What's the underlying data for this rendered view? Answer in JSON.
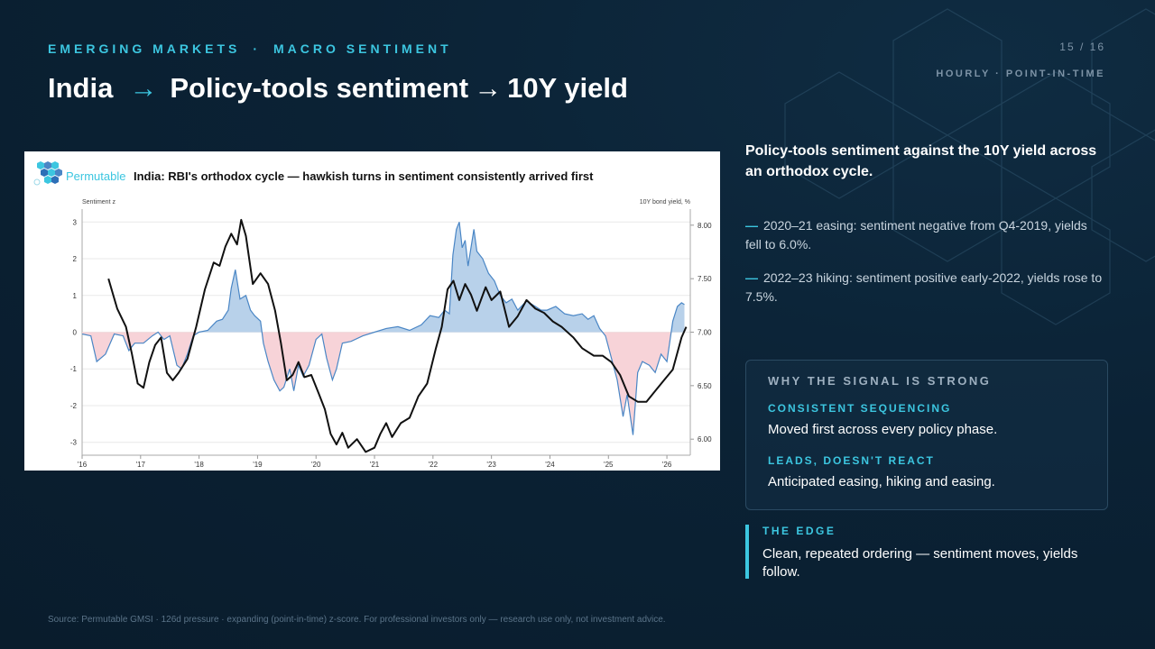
{
  "header": {
    "eyebrow_left": "EMERGING MARKETS",
    "eyebrow_sep": "·",
    "eyebrow_right": "MACRO SENTIMENT",
    "title_part1": "India",
    "title_arrow1": "→",
    "title_part2": "Policy-tools sentiment",
    "title_arrow2": "→",
    "title_part3": "10Y yield",
    "page_number": "15 / 16",
    "frequency": "HOURLY · POINT-IN-TIME"
  },
  "chart_card": {
    "brand": "Permutable",
    "brand_color": "#3cc6e0",
    "title": "India: RBI's orthodox cycle — hawkish turns in sentiment consistently arrived first",
    "left_axis_label": "Sentiment z",
    "right_axis_label": "10Y bond yield, %"
  },
  "chart_data": {
    "type": "area",
    "x_ticks": [
      "'16",
      "'17",
      "'18",
      "'19",
      "'20",
      "'21",
      "'22",
      "'23",
      "'24",
      "'25",
      "'26"
    ],
    "x_range": [
      2016.0,
      2026.4
    ],
    "left_y_ticks": [
      "3",
      "2",
      "1",
      "0",
      "-1",
      "-2",
      "-3"
    ],
    "left_ylim": [
      -3.35,
      3.35
    ],
    "right_y_ticks": [
      "8.00",
      "7.50",
      "7.00",
      "6.50",
      "6.00"
    ],
    "right_ylim": [
      5.85,
      8.15
    ],
    "grid": true,
    "colors": {
      "positive_fill": "#b8d1ea",
      "negative_fill": "#f7d3d8",
      "sentiment_line": "#4a86c5",
      "yield_line": "#111111"
    },
    "series": [
      {
        "axis": "left",
        "style": "filled-area",
        "points": [
          [
            2016.0,
            -0.05
          ],
          [
            2016.15,
            -0.1
          ],
          [
            2016.25,
            -0.8
          ],
          [
            2016.4,
            -0.6
          ],
          [
            2016.55,
            -0.05
          ],
          [
            2016.7,
            -0.1
          ],
          [
            2016.8,
            -0.5
          ],
          [
            2016.9,
            -0.3
          ],
          [
            2017.05,
            -0.3
          ],
          [
            2017.2,
            -0.1
          ],
          [
            2017.3,
            0.0
          ],
          [
            2017.4,
            -0.2
          ],
          [
            2017.5,
            -0.1
          ],
          [
            2017.62,
            -0.9
          ],
          [
            2017.7,
            -1.0
          ],
          [
            2017.8,
            -0.6
          ],
          [
            2017.9,
            -0.1
          ],
          [
            2018.0,
            0.0
          ],
          [
            2018.15,
            0.05
          ],
          [
            2018.3,
            0.3
          ],
          [
            2018.4,
            0.35
          ],
          [
            2018.5,
            0.6
          ],
          [
            2018.55,
            1.2
          ],
          [
            2018.62,
            1.7
          ],
          [
            2018.7,
            0.9
          ],
          [
            2018.8,
            1.0
          ],
          [
            2018.88,
            0.6
          ],
          [
            2018.95,
            0.45
          ],
          [
            2019.05,
            0.3
          ],
          [
            2019.1,
            -0.3
          ],
          [
            2019.18,
            -0.8
          ],
          [
            2019.28,
            -1.3
          ],
          [
            2019.38,
            -1.6
          ],
          [
            2019.45,
            -1.5
          ],
          [
            2019.55,
            -1.0
          ],
          [
            2019.62,
            -1.6
          ],
          [
            2019.7,
            -0.9
          ],
          [
            2019.78,
            -1.2
          ],
          [
            2019.88,
            -0.9
          ],
          [
            2020.0,
            -0.2
          ],
          [
            2020.1,
            -0.05
          ],
          [
            2020.18,
            -0.7
          ],
          [
            2020.28,
            -1.3
          ],
          [
            2020.35,
            -1.0
          ],
          [
            2020.45,
            -0.3
          ],
          [
            2020.6,
            -0.25
          ],
          [
            2020.8,
            -0.1
          ],
          [
            2021.0,
            0.0
          ],
          [
            2021.2,
            0.1
          ],
          [
            2021.4,
            0.15
          ],
          [
            2021.6,
            0.05
          ],
          [
            2021.8,
            0.2
          ],
          [
            2021.95,
            0.45
          ],
          [
            2022.1,
            0.4
          ],
          [
            2022.2,
            0.6
          ],
          [
            2022.28,
            0.5
          ],
          [
            2022.34,
            2.1
          ],
          [
            2022.4,
            2.8
          ],
          [
            2022.45,
            3.0
          ],
          [
            2022.5,
            2.3
          ],
          [
            2022.55,
            2.5
          ],
          [
            2022.6,
            1.8
          ],
          [
            2022.7,
            2.8
          ],
          [
            2022.75,
            2.2
          ],
          [
            2022.85,
            2.0
          ],
          [
            2022.95,
            1.6
          ],
          [
            2023.05,
            1.4
          ],
          [
            2023.15,
            1.0
          ],
          [
            2023.25,
            0.8
          ],
          [
            2023.35,
            0.9
          ],
          [
            2023.45,
            0.6
          ],
          [
            2023.6,
            0.85
          ],
          [
            2023.75,
            0.7
          ],
          [
            2023.85,
            0.6
          ],
          [
            2023.95,
            0.6
          ],
          [
            2024.1,
            0.7
          ],
          [
            2024.25,
            0.5
          ],
          [
            2024.4,
            0.45
          ],
          [
            2024.55,
            0.5
          ],
          [
            2024.65,
            0.35
          ],
          [
            2024.75,
            0.45
          ],
          [
            2024.85,
            0.1
          ],
          [
            2024.95,
            -0.1
          ],
          [
            2025.05,
            -0.7
          ],
          [
            2025.15,
            -1.3
          ],
          [
            2025.25,
            -2.3
          ],
          [
            2025.32,
            -1.7
          ],
          [
            2025.42,
            -2.8
          ],
          [
            2025.5,
            -1.1
          ],
          [
            2025.58,
            -0.8
          ],
          [
            2025.7,
            -0.9
          ],
          [
            2025.8,
            -1.1
          ],
          [
            2025.9,
            -0.6
          ],
          [
            2026.0,
            -0.8
          ],
          [
            2026.1,
            0.3
          ],
          [
            2026.18,
            0.7
          ],
          [
            2026.25,
            0.8
          ],
          [
            2026.3,
            0.75
          ]
        ]
      },
      {
        "axis": "right",
        "style": "line",
        "points": [
          [
            2016.45,
            7.5
          ],
          [
            2016.6,
            7.22
          ],
          [
            2016.75,
            7.05
          ],
          [
            2016.85,
            6.8
          ],
          [
            2016.95,
            6.52
          ],
          [
            2017.05,
            6.48
          ],
          [
            2017.15,
            6.72
          ],
          [
            2017.25,
            6.88
          ],
          [
            2017.35,
            6.95
          ],
          [
            2017.45,
            6.62
          ],
          [
            2017.55,
            6.55
          ],
          [
            2017.65,
            6.62
          ],
          [
            2017.8,
            6.75
          ],
          [
            2017.95,
            7.05
          ],
          [
            2018.1,
            7.4
          ],
          [
            2018.25,
            7.65
          ],
          [
            2018.35,
            7.62
          ],
          [
            2018.45,
            7.8
          ],
          [
            2018.55,
            7.92
          ],
          [
            2018.65,
            7.82
          ],
          [
            2018.72,
            8.05
          ],
          [
            2018.8,
            7.9
          ],
          [
            2018.92,
            7.45
          ],
          [
            2019.05,
            7.55
          ],
          [
            2019.18,
            7.45
          ],
          [
            2019.3,
            7.2
          ],
          [
            2019.4,
            6.9
          ],
          [
            2019.5,
            6.55
          ],
          [
            2019.6,
            6.6
          ],
          [
            2019.7,
            6.72
          ],
          [
            2019.8,
            6.58
          ],
          [
            2019.92,
            6.6
          ],
          [
            2020.05,
            6.42
          ],
          [
            2020.15,
            6.28
          ],
          [
            2020.25,
            6.05
          ],
          [
            2020.35,
            5.95
          ],
          [
            2020.45,
            6.06
          ],
          [
            2020.55,
            5.92
          ],
          [
            2020.7,
            6.0
          ],
          [
            2020.85,
            5.88
          ],
          [
            2021.0,
            5.92
          ],
          [
            2021.1,
            6.05
          ],
          [
            2021.2,
            6.15
          ],
          [
            2021.3,
            6.02
          ],
          [
            2021.45,
            6.15
          ],
          [
            2021.6,
            6.2
          ],
          [
            2021.75,
            6.4
          ],
          [
            2021.9,
            6.52
          ],
          [
            2022.05,
            6.85
          ],
          [
            2022.15,
            7.05
          ],
          [
            2022.25,
            7.4
          ],
          [
            2022.35,
            7.48
          ],
          [
            2022.45,
            7.3
          ],
          [
            2022.55,
            7.45
          ],
          [
            2022.65,
            7.35
          ],
          [
            2022.75,
            7.2
          ],
          [
            2022.9,
            7.42
          ],
          [
            2023.0,
            7.3
          ],
          [
            2023.15,
            7.38
          ],
          [
            2023.3,
            7.05
          ],
          [
            2023.45,
            7.15
          ],
          [
            2023.6,
            7.3
          ],
          [
            2023.75,
            7.22
          ],
          [
            2023.9,
            7.18
          ],
          [
            2024.05,
            7.1
          ],
          [
            2024.2,
            7.05
          ],
          [
            2024.4,
            6.95
          ],
          [
            2024.55,
            6.85
          ],
          [
            2024.75,
            6.78
          ],
          [
            2024.9,
            6.78
          ],
          [
            2025.05,
            6.72
          ],
          [
            2025.2,
            6.6
          ],
          [
            2025.35,
            6.4
          ],
          [
            2025.5,
            6.35
          ],
          [
            2025.65,
            6.35
          ],
          [
            2025.8,
            6.45
          ],
          [
            2025.95,
            6.55
          ],
          [
            2026.1,
            6.65
          ],
          [
            2026.25,
            6.95
          ],
          [
            2026.33,
            7.05
          ]
        ]
      }
    ]
  },
  "panel": {
    "lead": "Policy-tools sentiment against the 10Y yield across an orthodox cycle.",
    "bullets": [
      "2020–21 easing: sentiment negative from Q4-2019, yields fell to 6.0%.",
      "2022–23 hiking: sentiment positive early-2022, yields rose to 7.5%."
    ],
    "bullet_dash": "—",
    "box": {
      "heading": "WHY THE SIGNAL IS STRONG",
      "k1": "CONSISTENT SEQUENCING",
      "v1": "Moved first across every policy phase.",
      "k2": "LEADS, DOESN'T REACT",
      "v2": "Anticipated easing, hiking and easing."
    },
    "edge": {
      "heading": "THE EDGE",
      "text": "Clean, repeated ordering — sentiment moves, yields follow."
    }
  },
  "footer": {
    "source": "Source: Permutable GMSI · 126d pressure · expanding (point-in-time) z-score. For professional investors only — research use only, not investment advice."
  }
}
